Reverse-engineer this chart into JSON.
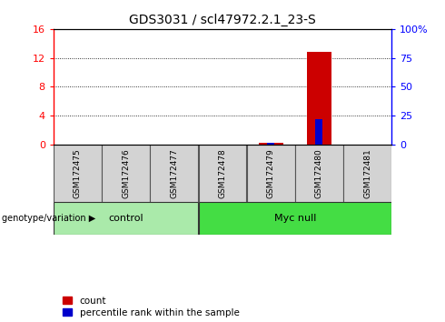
{
  "title": "GDS3031 / scl47972.2.1_23-S",
  "samples": [
    "GSM172475",
    "GSM172476",
    "GSM172477",
    "GSM172478",
    "GSM172479",
    "GSM172480",
    "GSM172481"
  ],
  "count_values": [
    0,
    0,
    0,
    0,
    0.28,
    12.8,
    0
  ],
  "percentile_values": [
    0,
    0,
    0,
    0,
    1.5,
    22,
    0
  ],
  "ylim_left": [
    0,
    16
  ],
  "ylim_right": [
    0,
    100
  ],
  "yticks_left": [
    0,
    4,
    8,
    12,
    16
  ],
  "yticks_right": [
    0,
    25,
    50,
    75,
    100
  ],
  "yticklabels_right": [
    "0",
    "25",
    "50",
    "75",
    "100%"
  ],
  "groups": [
    {
      "label": "control",
      "start": 0,
      "end": 2,
      "color": "#AAEAAA"
    },
    {
      "label": "Myc null",
      "start": 3,
      "end": 6,
      "color": "#44DD44"
    }
  ],
  "bar_color_count": "#CC0000",
  "bar_color_percentile": "#0000CC",
  "sample_box_color": "#D3D3D3",
  "group_label_text": "genotype/variation",
  "legend_count": "count",
  "legend_percentile": "percentile rank within the sample",
  "bar_width": 0.5,
  "title_fontsize": 10
}
